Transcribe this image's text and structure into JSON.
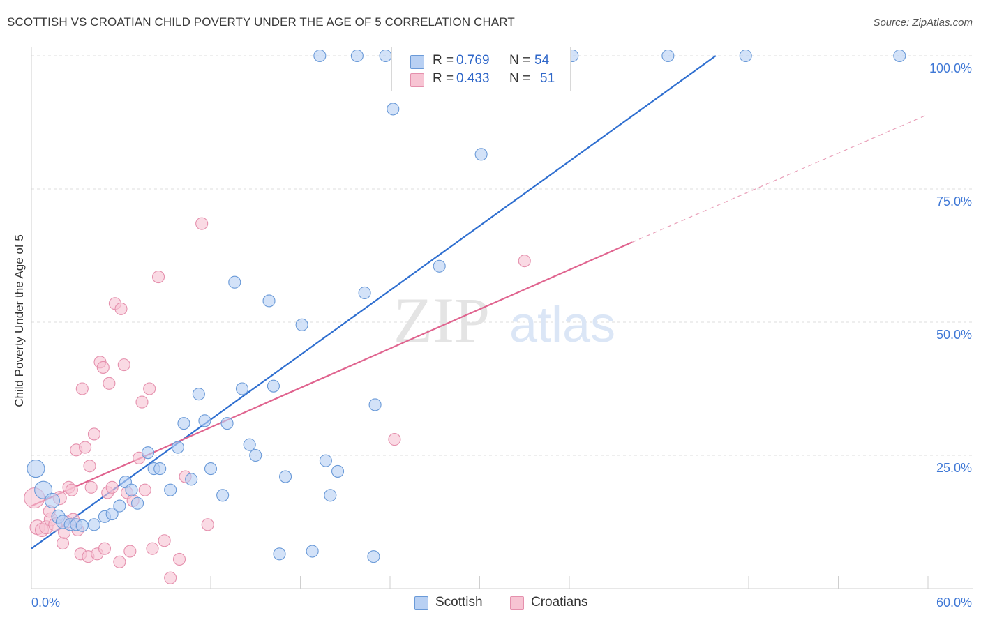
{
  "header": {
    "title": "SCOTTISH VS CROATIAN CHILD POVERTY UNDER THE AGE OF 5 CORRELATION CHART",
    "source": "Source: ZipAtlas.com"
  },
  "watermark": {
    "zip": "ZIP",
    "atlas": "atlas"
  },
  "legend_top": {
    "rows": [
      {
        "r_label": "R =",
        "r_value": "0.769",
        "n_label": "N =",
        "n_value": "54"
      },
      {
        "r_label": "R =",
        "r_value": "0.433",
        "n_label": "N =",
        "n_value": "51"
      }
    ]
  },
  "legend_bottom": {
    "items": [
      "Scottish",
      "Croatians"
    ]
  },
  "colors": {
    "scottish_fill": "#b8d0f3",
    "scottish_stroke": "#6a9ad8",
    "scottish_line": "#2f6fd0",
    "croatian_fill": "#f7c4d3",
    "croatian_stroke": "#e590ad",
    "croatian_line": "#e0648f",
    "axis_text": "#3f78d6",
    "grid": "#dedede"
  },
  "chart_data": {
    "type": "scatter",
    "title": "SCOTTISH VS CROATIAN CHILD POVERTY UNDER THE AGE OF 5 CORRELATION CHART",
    "xlabel": "",
    "ylabel": "Child Poverty Under the Age of 5",
    "xlim": [
      0,
      60
    ],
    "ylim": [
      0,
      100
    ],
    "x_tick_labels": [
      {
        "value": 0,
        "label": "0.0%"
      },
      {
        "value": 60,
        "label": "60.0%"
      }
    ],
    "y_tick_labels": [
      {
        "value": 25,
        "label": "25.0%"
      },
      {
        "value": 50,
        "label": "50.0%"
      },
      {
        "value": 75,
        "label": "75.0%"
      },
      {
        "value": 100,
        "label": "100.0%"
      }
    ],
    "grid": true,
    "legend_position": "top-center",
    "series": [
      {
        "name": "Scottish",
        "R": 0.769,
        "N": 54,
        "trend": {
          "x": [
            0,
            45.8
          ],
          "y": [
            7.5,
            100
          ]
        },
        "points": [
          [
            0.3,
            22.5,
            11
          ],
          [
            0.8,
            18.5,
            11
          ],
          [
            1.4,
            16.5,
            9
          ],
          [
            1.8,
            13.5,
            8
          ],
          [
            2.1,
            12.5,
            8
          ],
          [
            2.6,
            12.0,
            7
          ],
          [
            3.0,
            12.0,
            7
          ],
          [
            3.4,
            11.8,
            7
          ],
          [
            4.2,
            12.0,
            7
          ],
          [
            4.9,
            13.5,
            7
          ],
          [
            5.4,
            14.0,
            7
          ],
          [
            5.9,
            15.5,
            7
          ],
          [
            6.3,
            20.0,
            7
          ],
          [
            6.7,
            18.5,
            7
          ],
          [
            7.1,
            16.0,
            7
          ],
          [
            7.8,
            25.5,
            7
          ],
          [
            8.2,
            22.5,
            7
          ],
          [
            8.6,
            22.5,
            7
          ],
          [
            9.3,
            18.5,
            7
          ],
          [
            9.8,
            26.5,
            7
          ],
          [
            10.2,
            31.0,
            7
          ],
          [
            10.7,
            20.5,
            7
          ],
          [
            11.2,
            36.5,
            7
          ],
          [
            11.6,
            31.5,
            7
          ],
          [
            12.0,
            22.5,
            7
          ],
          [
            12.8,
            17.5,
            7
          ],
          [
            13.1,
            31.0,
            7
          ],
          [
            13.6,
            57.5,
            7
          ],
          [
            14.1,
            37.5,
            7
          ],
          [
            14.6,
            27.0,
            7
          ],
          [
            15.0,
            25.0,
            7
          ],
          [
            15.9,
            54.0,
            7
          ],
          [
            16.2,
            38.0,
            7
          ],
          [
            16.6,
            6.5,
            7
          ],
          [
            17.0,
            21.0,
            7
          ],
          [
            18.1,
            49.5,
            7
          ],
          [
            18.8,
            7.0,
            7
          ],
          [
            19.3,
            100.0,
            7
          ],
          [
            19.7,
            24.0,
            7
          ],
          [
            20.0,
            17.5,
            7
          ],
          [
            20.5,
            22.0,
            7
          ],
          [
            21.8,
            100.0,
            7
          ],
          [
            22.3,
            55.5,
            7
          ],
          [
            22.9,
            6.0,
            7
          ],
          [
            23.0,
            34.5,
            7
          ],
          [
            23.7,
            100.0,
            7
          ],
          [
            24.2,
            90.0,
            7
          ],
          [
            25.3,
            100.0,
            7
          ],
          [
            27.3,
            60.5,
            7
          ],
          [
            30.1,
            81.5,
            7
          ],
          [
            36.2,
            100.0,
            7
          ],
          [
            42.6,
            100.0,
            7
          ],
          [
            47.8,
            100.0,
            7
          ],
          [
            58.1,
            100.0,
            7
          ]
        ]
      },
      {
        "name": "Croatians",
        "R": 0.433,
        "N": 51,
        "trend": {
          "x": [
            0,
            40.2
          ],
          "y": [
            15.5,
            65.0
          ]
        },
        "trend_extension": {
          "x": [
            40.2,
            60
          ],
          "y": [
            65.0,
            89.0
          ]
        },
        "points": [
          [
            0.2,
            17.0,
            13
          ],
          [
            0.4,
            11.5,
            9
          ],
          [
            0.7,
            11.0,
            8
          ],
          [
            1.0,
            11.5,
            8
          ],
          [
            1.3,
            13.0,
            8
          ],
          [
            1.6,
            12.0,
            8
          ],
          [
            1.9,
            17.0,
            8
          ],
          [
            2.1,
            8.5,
            7
          ],
          [
            2.4,
            12.5,
            7
          ],
          [
            2.5,
            19.0,
            7
          ],
          [
            2.7,
            18.5,
            7
          ],
          [
            2.8,
            13.0,
            7
          ],
          [
            3.0,
            26.0,
            7
          ],
          [
            3.1,
            11.0,
            7
          ],
          [
            3.3,
            6.5,
            7
          ],
          [
            3.4,
            37.5,
            7
          ],
          [
            3.6,
            26.5,
            7
          ],
          [
            3.8,
            6.0,
            7
          ],
          [
            3.9,
            23.0,
            7
          ],
          [
            4.0,
            19.0,
            7
          ],
          [
            4.2,
            29.0,
            7
          ],
          [
            4.4,
            6.5,
            7
          ],
          [
            4.6,
            42.5,
            7
          ],
          [
            4.8,
            41.5,
            7
          ],
          [
            4.9,
            7.5,
            7
          ],
          [
            5.1,
            18.0,
            7
          ],
          [
            5.2,
            38.5,
            7
          ],
          [
            5.4,
            19.0,
            7
          ],
          [
            5.6,
            53.5,
            7
          ],
          [
            5.9,
            5.0,
            7
          ],
          [
            6.0,
            52.5,
            7
          ],
          [
            6.2,
            42.0,
            7
          ],
          [
            6.4,
            18.0,
            7
          ],
          [
            6.6,
            7.0,
            7
          ],
          [
            6.8,
            16.5,
            7
          ],
          [
            7.2,
            24.5,
            7
          ],
          [
            7.4,
            35.0,
            7
          ],
          [
            7.6,
            18.5,
            7
          ],
          [
            7.9,
            37.5,
            7
          ],
          [
            8.1,
            7.5,
            7
          ],
          [
            8.5,
            58.5,
            7
          ],
          [
            8.9,
            9.0,
            7
          ],
          [
            9.3,
            2.0,
            7
          ],
          [
            9.9,
            5.5,
            7
          ],
          [
            10.3,
            21.0,
            7
          ],
          [
            11.4,
            68.5,
            7
          ],
          [
            11.8,
            12.0,
            7
          ],
          [
            24.3,
            28.0,
            7
          ],
          [
            33.0,
            61.5,
            7
          ],
          [
            1.2,
            14.5,
            7
          ],
          [
            2.2,
            10.5,
            7
          ]
        ]
      }
    ]
  }
}
